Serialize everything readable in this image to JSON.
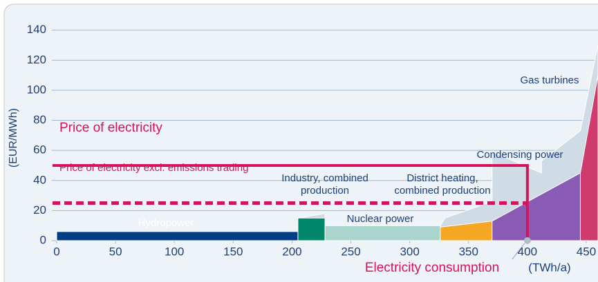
{
  "chart_data": {
    "type": "merit-order",
    "y_label": "(EUR/MWh)",
    "x_label": "(TWh/a)",
    "xlim": [
      0,
      460
    ],
    "ylim": [
      0,
      155
    ],
    "xticks": [
      0,
      50,
      100,
      150,
      200,
      250,
      300,
      350,
      400,
      450
    ],
    "yticks": [
      0,
      20,
      40,
      60,
      80,
      100,
      120,
      140
    ],
    "grid": true,
    "range_area": {
      "color": "#cfdbe5",
      "x": [
        205,
        228,
        228,
        326,
        330,
        370,
        370,
        412,
        412,
        445,
        460
      ],
      "values": [
        15,
        18,
        10,
        10,
        15,
        26,
        59,
        45,
        53,
        73,
        130
      ]
    },
    "segments": [
      {
        "name": [
          "Hydropower"
        ],
        "color": "#003f87",
        "x": [
          0,
          205
        ],
        "values": [
          6,
          6
        ]
      },
      {
        "name": [
          "Industry, combined",
          "production"
        ],
        "color": "#00866a",
        "x": [
          205,
          228
        ],
        "values": [
          15,
          15
        ]
      },
      {
        "name": [
          "Nuclear power"
        ],
        "color": "#a9d5cc",
        "x": [
          228,
          326
        ],
        "values": [
          10,
          10
        ]
      },
      {
        "name": [
          "District heating,",
          "combined production"
        ],
        "color": "#f5a623",
        "x": [
          326,
          370
        ],
        "values": [
          9,
          13
        ]
      },
      {
        "name": [
          "Condensing power"
        ],
        "color": "#8a5bb5",
        "x": [
          370,
          445
        ],
        "values": [
          13,
          45
        ]
      },
      {
        "name": [
          "Gas turbines"
        ],
        "color": "#d03b6d",
        "x": [
          445,
          460
        ],
        "values": [
          45,
          110
        ]
      }
    ],
    "price": {
      "label": "Price of electricity",
      "value": 50,
      "color": "#d4145a"
    },
    "price_excl": {
      "label": "Price of electricity excl. emissions trading",
      "value": 25,
      "color": "#d4145a"
    },
    "consumption": {
      "label": "Electricity consumption",
      "value": 400,
      "color": "#d4145a"
    }
  }
}
